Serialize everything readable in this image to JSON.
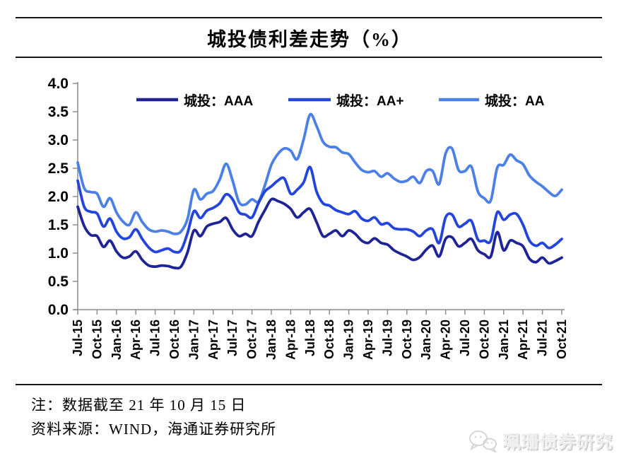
{
  "header": {
    "title": "城投债利差走势（%）"
  },
  "notes": {
    "line1": "注：数据截至 21 年 10 月 15 日",
    "line2": "资料来源：WIND，海通证券研究所"
  },
  "watermark": {
    "icon": "wechat-icon",
    "text": "珮珊债券研究"
  },
  "chart_data": {
    "type": "line",
    "title": "城投债利差走势（%）",
    "xlabel": "",
    "ylabel": "",
    "ylim": [
      0.0,
      4.0
    ],
    "y_tick_labels": [
      "0.0",
      "0.5",
      "1.0",
      "1.5",
      "2.0",
      "2.5",
      "3.0",
      "3.5",
      "4.0"
    ],
    "x_frequency": "monthly",
    "x_start": "Jul-15",
    "x_end": "Oct-21",
    "x_tick_labels": [
      "Jul-15",
      "Oct-15",
      "Jan-16",
      "Apr-16",
      "Jul-16",
      "Oct-16",
      "Jan-17",
      "Apr-17",
      "Jul-17",
      "Oct-17",
      "Jan-18",
      "Apr-18",
      "Jul-18",
      "Oct-18",
      "Jan-19",
      "Apr-19",
      "Jul-19",
      "Oct-19",
      "Jan-20",
      "Apr-20",
      "Jul-20",
      "Oct-20",
      "Jan-21",
      "Apr-21",
      "Jul-21",
      "Oct-21"
    ],
    "x_ticks_every_n_points": 3,
    "grid": "off",
    "legend_position": "top-inside",
    "axis_color": "#8c8c8c",
    "series": [
      {
        "name": "城投：AAA",
        "color": "#1e2396",
        "values": [
          1.82,
          1.48,
          1.32,
          1.3,
          1.11,
          1.22,
          1.03,
          0.92,
          0.94,
          1.03,
          0.88,
          0.78,
          0.76,
          0.78,
          0.77,
          0.74,
          0.76,
          1.01,
          1.4,
          1.3,
          1.47,
          1.52,
          1.55,
          1.62,
          1.42,
          1.3,
          1.34,
          1.3,
          1.55,
          1.76,
          1.95,
          1.92,
          1.87,
          1.78,
          1.63,
          1.72,
          1.78,
          1.55,
          1.3,
          1.34,
          1.4,
          1.3,
          1.4,
          1.34,
          1.22,
          1.18,
          1.26,
          1.18,
          1.15,
          1.05,
          0.99,
          0.94,
          0.88,
          0.93,
          1.06,
          1.13,
          0.94,
          1.25,
          1.28,
          1.12,
          1.18,
          1.25,
          1.05,
          0.98,
          0.94,
          1.37,
          1.05,
          1.22,
          1.18,
          1.12,
          0.9,
          0.84,
          0.92,
          0.82,
          0.86,
          0.92
        ]
      },
      {
        "name": "城投：AA+",
        "color": "#2345dc",
        "values": [
          2.28,
          1.82,
          1.73,
          1.7,
          1.47,
          1.61,
          1.38,
          1.26,
          1.28,
          1.42,
          1.25,
          1.1,
          1.02,
          1.05,
          1.08,
          1.02,
          1.05,
          1.35,
          1.74,
          1.62,
          1.75,
          1.8,
          1.88,
          2.04,
          1.95,
          1.72,
          1.68,
          1.63,
          1.88,
          2.09,
          2.18,
          2.28,
          2.32,
          2.05,
          2.12,
          2.25,
          2.52,
          2.09,
          1.88,
          1.84,
          1.76,
          1.72,
          1.69,
          1.74,
          1.61,
          1.57,
          1.63,
          1.51,
          1.53,
          1.44,
          1.42,
          1.42,
          1.38,
          1.3,
          1.4,
          1.42,
          1.18,
          1.63,
          1.68,
          1.47,
          1.52,
          1.57,
          1.24,
          1.22,
          1.22,
          1.72,
          1.59,
          1.68,
          1.69,
          1.5,
          1.22,
          1.13,
          1.18,
          1.09,
          1.15,
          1.25
        ]
      },
      {
        "name": "城投：AA",
        "color": "#4b80e8",
        "values": [
          2.6,
          2.15,
          2.08,
          2.05,
          1.82,
          1.97,
          1.72,
          1.56,
          1.5,
          1.72,
          1.55,
          1.42,
          1.38,
          1.4,
          1.38,
          1.34,
          1.38,
          1.6,
          2.12,
          1.95,
          2.05,
          2.1,
          2.3,
          2.58,
          2.28,
          1.9,
          1.86,
          1.95,
          1.91,
          2.2,
          2.56,
          2.75,
          2.85,
          2.81,
          2.66,
          3.01,
          3.45,
          3.25,
          2.97,
          2.88,
          2.87,
          2.78,
          2.75,
          2.6,
          2.47,
          2.43,
          2.45,
          2.35,
          2.41,
          2.32,
          2.26,
          2.28,
          2.35,
          2.24,
          2.45,
          2.45,
          2.22,
          2.76,
          2.85,
          2.47,
          2.45,
          2.53,
          2.09,
          1.97,
          1.93,
          2.51,
          2.56,
          2.74,
          2.64,
          2.57,
          2.37,
          2.26,
          2.18,
          2.08,
          2.01,
          2.12
        ]
      }
    ]
  }
}
